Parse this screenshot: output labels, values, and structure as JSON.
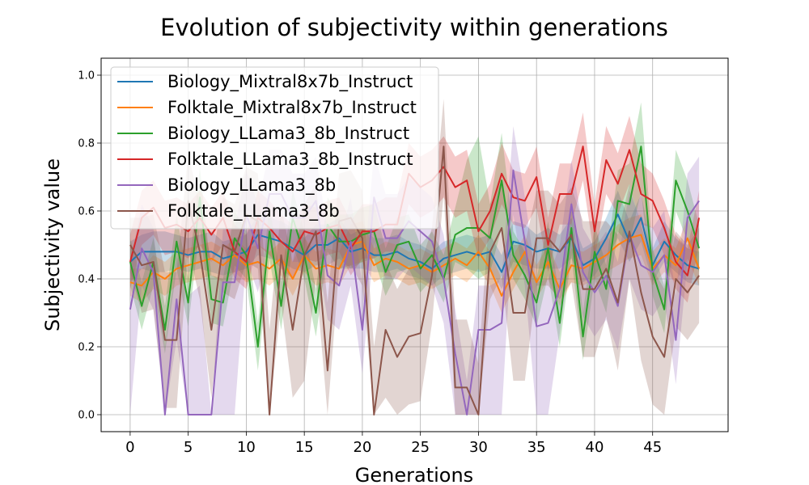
{
  "chart_data": {
    "type": "line",
    "title": "Evolution of subjectivity within generations",
    "xlabel": "Generations",
    "ylabel": "Subjectivity value",
    "xlim": [
      -2.5,
      51.5
    ],
    "ylim": [
      -0.05,
      1.05
    ],
    "xticks": [
      "0",
      "5",
      "10",
      "15",
      "20",
      "25",
      "30",
      "35",
      "40",
      "45"
    ],
    "yticks": [
      "0.0",
      "0.2",
      "0.4",
      "0.6",
      "0.8",
      "1.0"
    ],
    "grid": true,
    "legend_position": "upper-left",
    "x": [
      0,
      1,
      2,
      3,
      4,
      5,
      6,
      7,
      8,
      9,
      10,
      11,
      12,
      13,
      14,
      15,
      16,
      17,
      18,
      19,
      20,
      21,
      22,
      23,
      24,
      25,
      26,
      27,
      28,
      29,
      30,
      31,
      32,
      33,
      34,
      35,
      36,
      37,
      38,
      39,
      40,
      41,
      42,
      43,
      44,
      45,
      46,
      47,
      48,
      49
    ],
    "series": [
      {
        "name": "Biology_Mixtral8x7b_Instruct",
        "color": "#1f77b4",
        "values": [
          0.45,
          0.48,
          0.48,
          0.48,
          0.48,
          0.47,
          0.48,
          0.48,
          0.46,
          0.47,
          0.48,
          0.53,
          0.52,
          0.51,
          0.49,
          0.47,
          0.5,
          0.5,
          0.52,
          0.48,
          0.49,
          0.47,
          0.47,
          0.48,
          0.46,
          0.45,
          0.43,
          0.46,
          0.47,
          0.48,
          0.47,
          0.48,
          0.42,
          0.51,
          0.5,
          0.48,
          0.49,
          0.48,
          0.52,
          0.44,
          0.46,
          0.52,
          0.59,
          0.51,
          0.58,
          0.44,
          0.51,
          0.47,
          0.44,
          0.43
        ],
        "band_low": [
          0.39,
          0.43,
          0.42,
          0.42,
          0.43,
          0.42,
          0.43,
          0.42,
          0.41,
          0.42,
          0.43,
          0.47,
          0.46,
          0.45,
          0.43,
          0.42,
          0.44,
          0.44,
          0.46,
          0.43,
          0.43,
          0.42,
          0.42,
          0.43,
          0.41,
          0.4,
          0.38,
          0.41,
          0.42,
          0.43,
          0.42,
          0.43,
          0.37,
          0.45,
          0.44,
          0.43,
          0.43,
          0.43,
          0.46,
          0.39,
          0.41,
          0.46,
          0.52,
          0.45,
          0.51,
          0.39,
          0.45,
          0.42,
          0.39,
          0.38
        ],
        "band_high": [
          0.51,
          0.53,
          0.54,
          0.54,
          0.53,
          0.52,
          0.53,
          0.54,
          0.51,
          0.52,
          0.53,
          0.59,
          0.58,
          0.57,
          0.55,
          0.52,
          0.56,
          0.56,
          0.58,
          0.53,
          0.55,
          0.52,
          0.52,
          0.53,
          0.51,
          0.5,
          0.48,
          0.51,
          0.52,
          0.53,
          0.52,
          0.53,
          0.47,
          0.57,
          0.56,
          0.53,
          0.55,
          0.53,
          0.58,
          0.49,
          0.51,
          0.58,
          0.66,
          0.57,
          0.65,
          0.49,
          0.57,
          0.52,
          0.49,
          0.48
        ]
      },
      {
        "name": "Folktale_Mixtral8x7b_Instruct",
        "color": "#ff7f0e",
        "values": [
          0.39,
          0.38,
          0.42,
          0.4,
          0.43,
          0.44,
          0.45,
          0.46,
          0.44,
          0.47,
          0.44,
          0.45,
          0.43,
          0.46,
          0.4,
          0.47,
          0.43,
          0.44,
          0.43,
          0.5,
          0.51,
          0.44,
          0.46,
          0.45,
          0.43,
          0.44,
          0.42,
          0.44,
          0.46,
          0.44,
          0.48,
          0.43,
          0.35,
          0.42,
          0.48,
          0.39,
          0.45,
          0.37,
          0.44,
          0.43,
          0.45,
          0.47,
          0.5,
          0.52,
          0.53,
          0.43,
          0.47,
          0.44,
          0.52,
          0.43
        ],
        "band_low": [
          0.35,
          0.33,
          0.37,
          0.35,
          0.38,
          0.39,
          0.4,
          0.41,
          0.39,
          0.42,
          0.39,
          0.4,
          0.38,
          0.41,
          0.35,
          0.42,
          0.38,
          0.39,
          0.38,
          0.44,
          0.45,
          0.39,
          0.41,
          0.4,
          0.38,
          0.39,
          0.37,
          0.39,
          0.41,
          0.39,
          0.43,
          0.38,
          0.3,
          0.37,
          0.43,
          0.34,
          0.4,
          0.32,
          0.39,
          0.38,
          0.4,
          0.42,
          0.44,
          0.46,
          0.47,
          0.38,
          0.42,
          0.39,
          0.46,
          0.38
        ],
        "band_high": [
          0.43,
          0.43,
          0.47,
          0.45,
          0.48,
          0.49,
          0.5,
          0.51,
          0.49,
          0.52,
          0.49,
          0.5,
          0.48,
          0.51,
          0.45,
          0.52,
          0.48,
          0.49,
          0.48,
          0.56,
          0.57,
          0.49,
          0.51,
          0.5,
          0.48,
          0.49,
          0.47,
          0.49,
          0.51,
          0.49,
          0.53,
          0.48,
          0.4,
          0.47,
          0.53,
          0.44,
          0.5,
          0.42,
          0.49,
          0.48,
          0.5,
          0.52,
          0.56,
          0.58,
          0.59,
          0.48,
          0.52,
          0.49,
          0.58,
          0.48
        ]
      },
      {
        "name": "Biology_LLama3_8b_Instruct",
        "color": "#2ca02c",
        "values": [
          0.45,
          0.32,
          0.45,
          0.25,
          0.51,
          0.33,
          0.64,
          0.34,
          0.33,
          0.52,
          0.47,
          0.2,
          0.54,
          0.32,
          0.58,
          0.47,
          0.3,
          0.56,
          0.51,
          0.51,
          0.53,
          0.54,
          0.42,
          0.5,
          0.51,
          0.43,
          0.47,
          0.4,
          0.53,
          0.55,
          0.55,
          0.52,
          0.69,
          0.47,
          0.41,
          0.33,
          0.49,
          0.27,
          0.55,
          0.23,
          0.48,
          0.37,
          0.63,
          0.62,
          0.79,
          0.42,
          0.31,
          0.69,
          0.6,
          0.49
        ],
        "band_low": [
          0.38,
          0.25,
          0.38,
          0.18,
          0.43,
          0.26,
          0.55,
          0.27,
          0.26,
          0.44,
          0.4,
          0.13,
          0.46,
          0.25,
          0.5,
          0.4,
          0.23,
          0.48,
          0.43,
          0.43,
          0.45,
          0.46,
          0.35,
          0.42,
          0.43,
          0.36,
          0.4,
          0.33,
          0.45,
          0.43,
          0.4,
          0.42,
          0.55,
          0.4,
          0.34,
          0.26,
          0.41,
          0.2,
          0.47,
          0.16,
          0.4,
          0.3,
          0.54,
          0.5,
          0.66,
          0.35,
          0.24,
          0.6,
          0.51,
          0.42
        ],
        "band_high": [
          0.52,
          0.39,
          0.52,
          0.32,
          0.59,
          0.4,
          0.73,
          0.41,
          0.4,
          0.6,
          0.54,
          0.27,
          0.62,
          0.39,
          0.66,
          0.54,
          0.37,
          0.64,
          0.59,
          0.59,
          0.61,
          0.62,
          0.49,
          0.58,
          0.59,
          0.5,
          0.54,
          0.47,
          0.61,
          0.75,
          0.82,
          0.62,
          0.83,
          0.54,
          0.48,
          0.4,
          0.57,
          0.34,
          0.63,
          0.3,
          0.56,
          0.44,
          0.72,
          0.74,
          0.92,
          0.49,
          0.38,
          0.78,
          0.69,
          0.56
        ]
      },
      {
        "name": "Folktale_LLama3_8b_Instruct",
        "color": "#d62728",
        "values": [
          0.45,
          0.58,
          0.61,
          0.55,
          0.56,
          0.54,
          0.58,
          0.53,
          0.58,
          0.48,
          0.45,
          0.58,
          0.55,
          0.51,
          0.48,
          0.54,
          0.53,
          0.55,
          0.56,
          0.49,
          0.54,
          0.54,
          0.56,
          0.56,
          0.71,
          0.67,
          0.69,
          0.73,
          0.67,
          0.69,
          0.54,
          0.6,
          0.71,
          0.64,
          0.63,
          0.7,
          0.5,
          0.65,
          0.65,
          0.79,
          0.54,
          0.75,
          0.68,
          0.78,
          0.65,
          0.63,
          0.55,
          0.45,
          0.41,
          0.58
        ],
        "band_low": [
          0.37,
          0.5,
          0.53,
          0.47,
          0.48,
          0.46,
          0.5,
          0.45,
          0.5,
          0.4,
          0.37,
          0.5,
          0.47,
          0.43,
          0.4,
          0.46,
          0.45,
          0.47,
          0.48,
          0.41,
          0.46,
          0.46,
          0.48,
          0.48,
          0.62,
          0.58,
          0.6,
          0.64,
          0.58,
          0.6,
          0.46,
          0.52,
          0.62,
          0.56,
          0.55,
          0.61,
          0.42,
          0.56,
          0.56,
          0.69,
          0.46,
          0.65,
          0.59,
          0.68,
          0.56,
          0.55,
          0.47,
          0.37,
          0.33,
          0.5
        ],
        "band_high": [
          0.53,
          0.66,
          0.69,
          0.63,
          0.64,
          0.62,
          0.66,
          0.61,
          0.66,
          0.56,
          0.53,
          0.66,
          0.63,
          0.59,
          0.56,
          0.62,
          0.61,
          0.63,
          0.64,
          0.57,
          0.62,
          0.62,
          0.64,
          0.64,
          0.8,
          0.76,
          0.78,
          0.82,
          0.76,
          0.78,
          0.62,
          0.68,
          0.8,
          0.72,
          0.71,
          0.79,
          0.58,
          0.74,
          0.74,
          0.89,
          0.62,
          0.85,
          0.77,
          0.88,
          0.74,
          0.71,
          0.63,
          0.53,
          0.49,
          0.66
        ]
      },
      {
        "name": "Biology_LLama3_8b",
        "color": "#9467bd",
        "values": [
          0.31,
          0.49,
          0.42,
          0.0,
          0.34,
          0.0,
          0.0,
          0.0,
          0.39,
          0.39,
          0.59,
          0.49,
          0.65,
          0.65,
          0.58,
          0.58,
          0.63,
          0.41,
          0.38,
          0.51,
          0.25,
          0.64,
          0.52,
          0.52,
          0.57,
          0.54,
          0.51,
          0.4,
          0.18,
          0.0,
          0.25,
          0.25,
          0.27,
          0.72,
          0.51,
          0.26,
          0.27,
          0.37,
          0.62,
          0.42,
          0.36,
          0.41,
          0.32,
          0.53,
          0.44,
          0.42,
          0.47,
          0.22,
          0.58,
          0.63
        ],
        "band_low": [
          0.0,
          0.38,
          0.31,
          0.0,
          0.22,
          0.0,
          0.0,
          0.0,
          0.0,
          0.0,
          0.46,
          0.36,
          0.52,
          0.52,
          0.45,
          0.45,
          0.5,
          0.28,
          0.25,
          0.38,
          0.12,
          0.51,
          0.4,
          0.4,
          0.44,
          0.41,
          0.38,
          0.27,
          0.0,
          0.0,
          0.0,
          0.0,
          0.0,
          0.59,
          0.38,
          0.0,
          0.0,
          0.24,
          0.49,
          0.29,
          0.23,
          0.28,
          0.19,
          0.4,
          0.31,
          0.29,
          0.34,
          0.09,
          0.45,
          0.5
        ],
        "band_high": [
          0.44,
          0.62,
          0.55,
          0.2,
          0.47,
          0.35,
          0.38,
          0.0,
          0.55,
          0.55,
          0.72,
          0.62,
          0.78,
          0.78,
          0.71,
          0.71,
          0.76,
          0.54,
          0.51,
          0.64,
          0.38,
          0.77,
          0.65,
          0.65,
          0.7,
          0.67,
          0.64,
          0.53,
          0.31,
          0.1,
          0.38,
          0.38,
          0.4,
          0.85,
          0.64,
          0.39,
          0.4,
          0.5,
          0.75,
          0.55,
          0.49,
          0.54,
          0.45,
          0.66,
          0.57,
          0.55,
          0.6,
          0.35,
          0.71,
          0.76
        ]
      },
      {
        "name": "Folktale_LLama3_8b",
        "color": "#8c564b",
        "values": [
          0.5,
          0.44,
          0.45,
          0.22,
          0.22,
          0.63,
          0.48,
          0.25,
          0.5,
          0.48,
          0.59,
          0.57,
          0.0,
          0.47,
          0.25,
          0.47,
          0.54,
          0.13,
          0.57,
          0.58,
          0.52,
          0.0,
          0.25,
          0.17,
          0.23,
          0.24,
          0.41,
          0.79,
          0.08,
          0.08,
          0.0,
          0.48,
          0.55,
          0.3,
          0.3,
          0.52,
          0.52,
          0.48,
          0.53,
          0.37,
          0.37,
          0.43,
          0.33,
          0.54,
          0.36,
          0.23,
          0.17,
          0.4,
          0.36,
          0.41
        ],
        "band_low": [
          0.42,
          0.3,
          0.31,
          0.02,
          0.02,
          0.49,
          0.34,
          0.05,
          0.36,
          0.34,
          0.45,
          0.43,
          0.0,
          0.33,
          0.05,
          0.1,
          0.4,
          0.0,
          0.43,
          0.44,
          0.38,
          0.0,
          0.05,
          0.0,
          0.03,
          0.04,
          0.27,
          0.65,
          0.0,
          0.0,
          0.0,
          0.34,
          0.41,
          0.1,
          0.1,
          0.38,
          0.38,
          0.34,
          0.39,
          0.17,
          0.17,
          0.29,
          0.13,
          0.4,
          0.16,
          0.03,
          0.0,
          0.26,
          0.22,
          0.27
        ],
        "band_high": [
          0.58,
          0.58,
          0.59,
          0.42,
          0.42,
          0.77,
          0.62,
          0.45,
          0.64,
          0.62,
          0.73,
          0.71,
          0.25,
          0.61,
          0.45,
          0.62,
          0.68,
          0.33,
          0.71,
          0.72,
          0.66,
          0.2,
          0.45,
          0.37,
          0.43,
          0.44,
          0.55,
          0.93,
          0.28,
          0.28,
          0.15,
          0.62,
          0.69,
          0.5,
          0.5,
          0.66,
          0.66,
          0.62,
          0.67,
          0.57,
          0.57,
          0.57,
          0.53,
          0.68,
          0.56,
          0.43,
          0.37,
          0.54,
          0.5,
          0.55
        ]
      }
    ]
  }
}
